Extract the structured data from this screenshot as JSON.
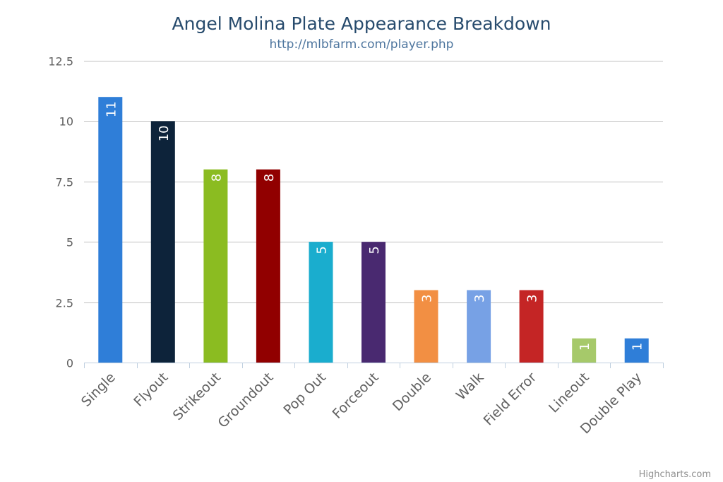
{
  "chart_data": {
    "type": "bar",
    "title": "Angel Molina Plate Appearance Breakdown",
    "subtitle": "http://mlbfarm.com/player.php",
    "xlabel": "",
    "ylabel": "",
    "ylim": [
      0,
      12.5
    ],
    "yticks": [
      "0",
      "2.5",
      "5",
      "7.5",
      "10",
      "12.5"
    ],
    "grid": true,
    "legend": "none",
    "categories": [
      "Single",
      "Flyout",
      "Strikeout",
      "Groundout",
      "Pop Out",
      "Forceout",
      "Double",
      "Walk",
      "Field Error",
      "Lineout",
      "Double Play"
    ],
    "values": [
      11,
      10,
      8,
      8,
      5,
      5,
      3,
      3,
      3,
      1,
      1
    ],
    "colors": [
      "#2f7ed8",
      "#0d233a",
      "#8bbc21",
      "#910000",
      "#1aadce",
      "#492970",
      "#f28f43",
      "#77a1e5",
      "#c42525",
      "#a6c96a",
      "#2f7ed8"
    ]
  },
  "credits": "Highcharts.com"
}
